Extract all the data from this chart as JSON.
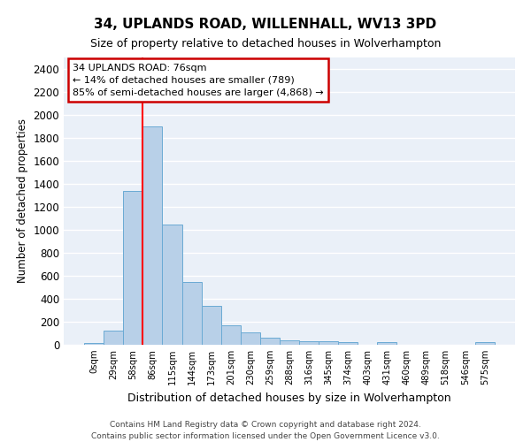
{
  "title": "34, UPLANDS ROAD, WILLENHALL, WV13 3PD",
  "subtitle": "Size of property relative to detached houses in Wolverhampton",
  "xlabel": "Distribution of detached houses by size in Wolverhampton",
  "ylabel": "Number of detached properties",
  "bar_color": "#b8d0e8",
  "bar_edge_color": "#6aaad4",
  "background_color": "#eaf0f8",
  "grid_color": "#ffffff",
  "categories": [
    "0sqm",
    "29sqm",
    "58sqm",
    "86sqm",
    "115sqm",
    "144sqm",
    "173sqm",
    "201sqm",
    "230sqm",
    "259sqm",
    "288sqm",
    "316sqm",
    "345sqm",
    "374sqm",
    "403sqm",
    "431sqm",
    "460sqm",
    "489sqm",
    "518sqm",
    "546sqm",
    "575sqm"
  ],
  "values": [
    15,
    125,
    1340,
    1900,
    1050,
    545,
    340,
    170,
    110,
    60,
    40,
    30,
    30,
    20,
    0,
    25,
    0,
    0,
    0,
    0,
    20
  ],
  "ylim": [
    0,
    2500
  ],
  "yticks": [
    0,
    200,
    400,
    600,
    800,
    1000,
    1200,
    1400,
    1600,
    1800,
    2000,
    2200,
    2400
  ],
  "red_line_index": 2.5,
  "annotation_title": "34 UPLANDS ROAD: 76sqm",
  "annotation_line1": "← 14% of detached houses are smaller (789)",
  "annotation_line2": "85% of semi-detached houses are larger (4,868) →",
  "annotation_box_color": "#ffffff",
  "annotation_box_edge_color": "#cc0000",
  "footer1": "Contains HM Land Registry data © Crown copyright and database right 2024.",
  "footer2": "Contains public sector information licensed under the Open Government Licence v3.0."
}
